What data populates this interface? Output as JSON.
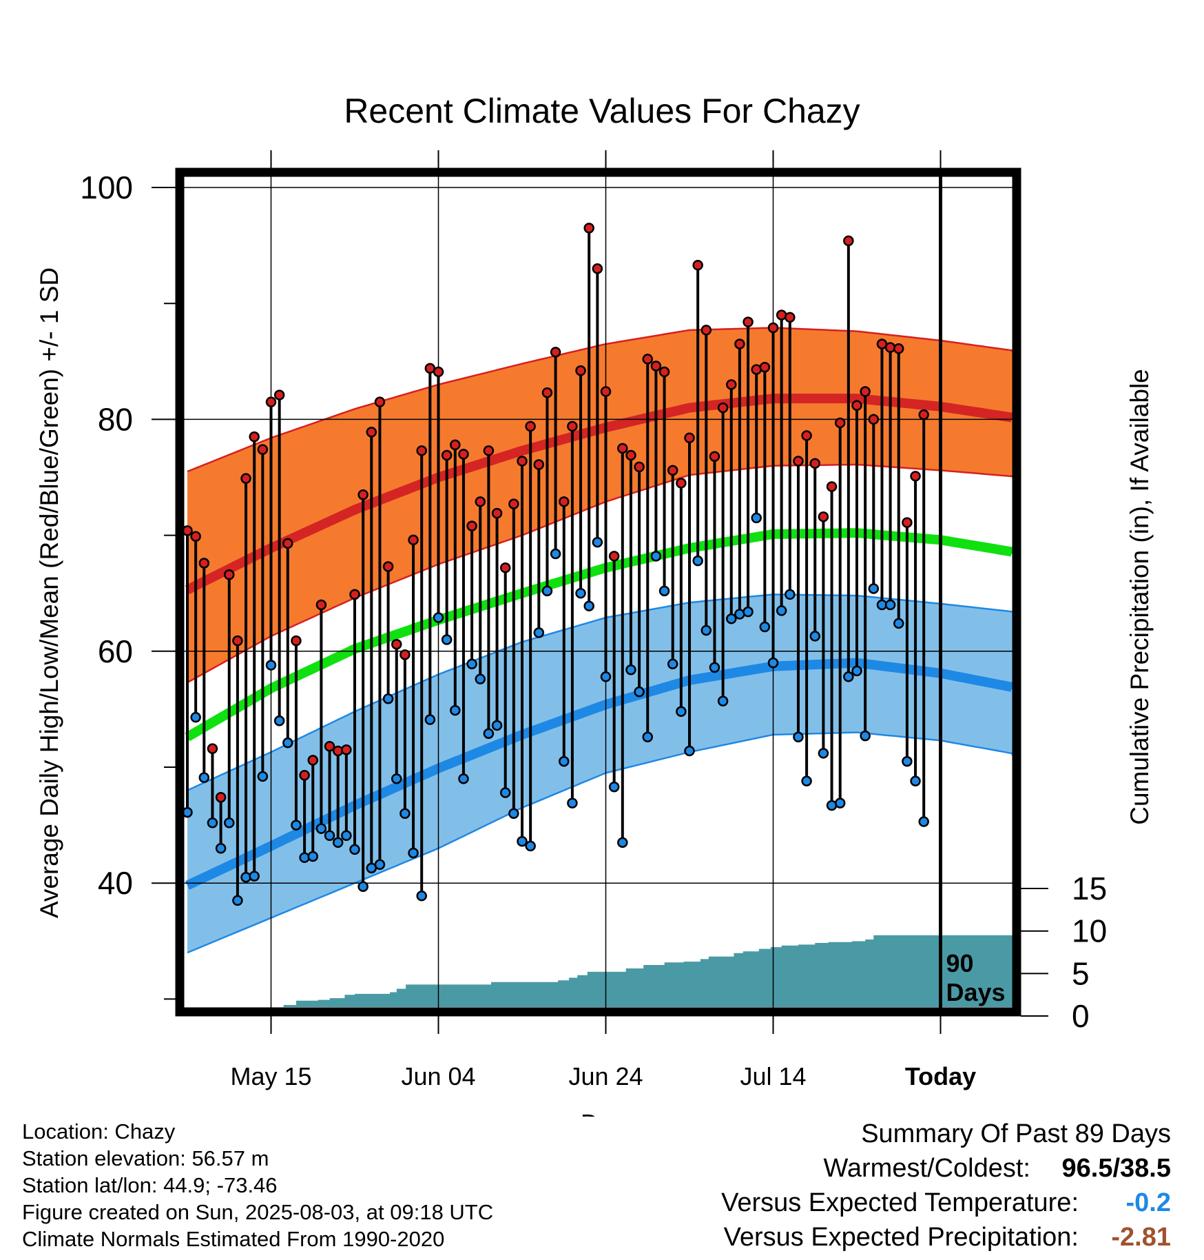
{
  "chart_data": {
    "type": "line",
    "title": "Recent Climate Values For Chazy",
    "xlabel": "Day",
    "ylabel": "Average Daily High/Low/Mean (Red/Blue/Green) +/- 1 SD",
    "y2label": "Cumulative Precipitation (in), If Available",
    "xlim": [
      -11,
      90
    ],
    "ylim": [
      28.8,
      102
    ],
    "y2lim": [
      0,
      24
    ],
    "x_ticks": [
      {
        "x": 0,
        "label": "May 15"
      },
      {
        "x": 20,
        "label": "Jun 04"
      },
      {
        "x": 40,
        "label": "Jun 24"
      },
      {
        "x": 60,
        "label": "Jul 14"
      },
      {
        "x": 80,
        "label": "Today"
      }
    ],
    "y_ticks": [
      40,
      60,
      80,
      100
    ],
    "y2_ticks": [
      0,
      5,
      10,
      15
    ],
    "today_marker": {
      "x": 80,
      "label_line1": "90",
      "label_line2": "Days"
    },
    "normals": {
      "x": [
        -10,
        0,
        10,
        20,
        30,
        40,
        50,
        60,
        70,
        80,
        90
      ],
      "high_mean": [
        65.3,
        68.9,
        72.2,
        75.0,
        77.3,
        79.3,
        81.0,
        81.8,
        81.8,
        81.1,
        80.0
      ],
      "high_upper": [
        75.5,
        78.4,
        80.9,
        83.0,
        84.8,
        86.5,
        87.7,
        87.9,
        87.6,
        86.8,
        85.8
      ],
      "high_lower": [
        57.3,
        61.3,
        64.6,
        67.5,
        70.0,
        72.9,
        75.2,
        76.0,
        76.1,
        75.6,
        75.0
      ],
      "mean": [
        52.6,
        56.8,
        60.2,
        62.7,
        65.0,
        67.2,
        68.9,
        70.1,
        70.2,
        69.6,
        68.4
      ],
      "low_mean": [
        39.8,
        43.2,
        46.7,
        49.9,
        52.8,
        55.4,
        57.5,
        58.7,
        59.0,
        58.1,
        56.7
      ],
      "low_upper": [
        48.0,
        51.3,
        54.8,
        58.0,
        60.8,
        62.9,
        64.2,
        64.9,
        64.8,
        64.1,
        63.3
      ],
      "low_lower": [
        34.0,
        37.0,
        40.0,
        43.0,
        46.5,
        49.5,
        51.3,
        52.8,
        53.0,
        52.3,
        51.0
      ]
    },
    "series": [
      {
        "name": "High",
        "color": "#d62020",
        "values": [
          70.4,
          69.9,
          67.6,
          51.6,
          47.4,
          66.6,
          60.9,
          74.9,
          78.5,
          77.4,
          81.5,
          82.1,
          69.3,
          60.9,
          49.3,
          50.6,
          64.0,
          51.8,
          51.4,
          51.5,
          64.9,
          73.5,
          78.9,
          81.5,
          67.3,
          60.6,
          59.7,
          69.6,
          77.3,
          84.4,
          84.1,
          76.9,
          77.8,
          77.0,
          70.8,
          72.9,
          77.3,
          71.9,
          67.2,
          72.7,
          76.4,
          79.4,
          76.1,
          82.3,
          85.8,
          72.9,
          79.4,
          84.2,
          96.5,
          93.0,
          82.4,
          68.2,
          77.5,
          76.9,
          75.9,
          85.2,
          84.6,
          84.1,
          75.6,
          74.5,
          78.4,
          93.3,
          87.7,
          76.8,
          81.0,
          83.0,
          86.5,
          88.4,
          84.3,
          84.5,
          87.9,
          89.0,
          88.8,
          76.4,
          78.6,
          76.2,
          71.6,
          74.2,
          79.7,
          95.4,
          81.2,
          82.4,
          80.0,
          86.5,
          86.2,
          86.1,
          71.1,
          75.1,
          80.4
        ]
      },
      {
        "name": "Low",
        "color": "#1e88e5",
        "values": [
          46.1,
          54.3,
          49.1,
          45.2,
          43.0,
          45.2,
          38.5,
          40.5,
          40.6,
          49.2,
          58.8,
          54.0,
          52.1,
          45.0,
          42.2,
          42.3,
          44.7,
          44.1,
          43.5,
          44.1,
          42.9,
          39.7,
          41.3,
          41.6,
          55.9,
          49.0,
          46.0,
          42.6,
          38.9,
          54.1,
          62.9,
          61.0,
          54.9,
          49.0,
          58.9,
          57.6,
          52.9,
          53.6,
          47.8,
          46.0,
          43.6,
          43.2,
          61.6,
          65.2,
          68.4,
          50.5,
          46.9,
          65.0,
          63.9,
          69.4,
          57.8,
          48.3,
          43.5,
          58.4,
          56.5,
          52.6,
          68.2,
          65.2,
          58.9,
          54.8,
          51.4,
          67.8,
          61.8,
          58.6,
          55.7,
          62.8,
          63.2,
          63.4,
          71.5,
          62.1,
          59.0,
          63.5,
          64.9,
          52.6,
          48.8,
          61.3,
          51.2,
          46.7,
          46.9,
          57.8,
          58.3,
          52.7,
          65.4,
          64.0,
          64.0,
          62.4,
          50.5,
          48.8,
          45.3
        ]
      },
      {
        "name": "Cumulative Precipitation",
        "color": "#4a9aa5",
        "steps": [
          [
            -10.0,
            0.0
          ],
          [
            -9.6,
            0.0
          ],
          [
            -9.2,
            0.3
          ],
          [
            -8.6,
            0.6
          ],
          [
            -8.0,
            0.7
          ],
          [
            -1.0,
            0.7
          ],
          [
            0.5,
            0.8
          ],
          [
            1.5,
            1.3
          ],
          [
            3.0,
            1.8
          ],
          [
            5.6,
            1.9
          ],
          [
            7.0,
            2.1
          ],
          [
            8.8,
            2.5
          ],
          [
            10.0,
            2.6
          ],
          [
            13.1,
            2.6
          ],
          [
            14.2,
            2.8
          ],
          [
            15.0,
            3.2
          ],
          [
            16.1,
            3.7
          ],
          [
            25.0,
            3.7
          ],
          [
            26.3,
            4.0
          ],
          [
            33.0,
            4.0
          ],
          [
            34.3,
            4.2
          ],
          [
            35.6,
            4.5
          ],
          [
            36.6,
            4.8
          ],
          [
            37.8,
            5.2
          ],
          [
            41.5,
            5.2
          ],
          [
            42.4,
            5.6
          ],
          [
            44.5,
            6.0
          ],
          [
            47.0,
            6.3
          ],
          [
            49.3,
            6.4
          ],
          [
            51.3,
            6.7
          ],
          [
            52.3,
            7.0
          ],
          [
            55.3,
            7.4
          ],
          [
            56.4,
            7.6
          ],
          [
            58.3,
            7.9
          ],
          [
            59.7,
            8.1
          ],
          [
            61.0,
            8.3
          ],
          [
            63.0,
            8.4
          ],
          [
            65.0,
            8.6
          ],
          [
            66.6,
            8.7
          ],
          [
            69.4,
            8.8
          ],
          [
            71.0,
            9.0
          ],
          [
            72.0,
            9.5
          ],
          [
            90.0,
            9.5
          ]
        ]
      }
    ]
  },
  "footer": {
    "location": "Location: Chazy",
    "elevation": "Station elevation: 56.57 m",
    "latlon": "Station lat/lon: 44.9; -73.46",
    "created": "Figure created on Sun, 2025-08-03, at 09:18 UTC",
    "normals_note": "Climate Normals Estimated From 1990-2020"
  },
  "summary": {
    "heading": "Summary Of Past 89 Days",
    "warm_cold_label": "Warmest/Coldest:",
    "warm_cold_value": "96.5/38.5",
    "temp_label": "Versus Expected Temperature:",
    "temp_value": "-0.2",
    "temp_color": "#1e88e5",
    "precip_label": "Versus Expected Precipitation:",
    "precip_value": "-2.81",
    "precip_color": "#a0522d"
  }
}
